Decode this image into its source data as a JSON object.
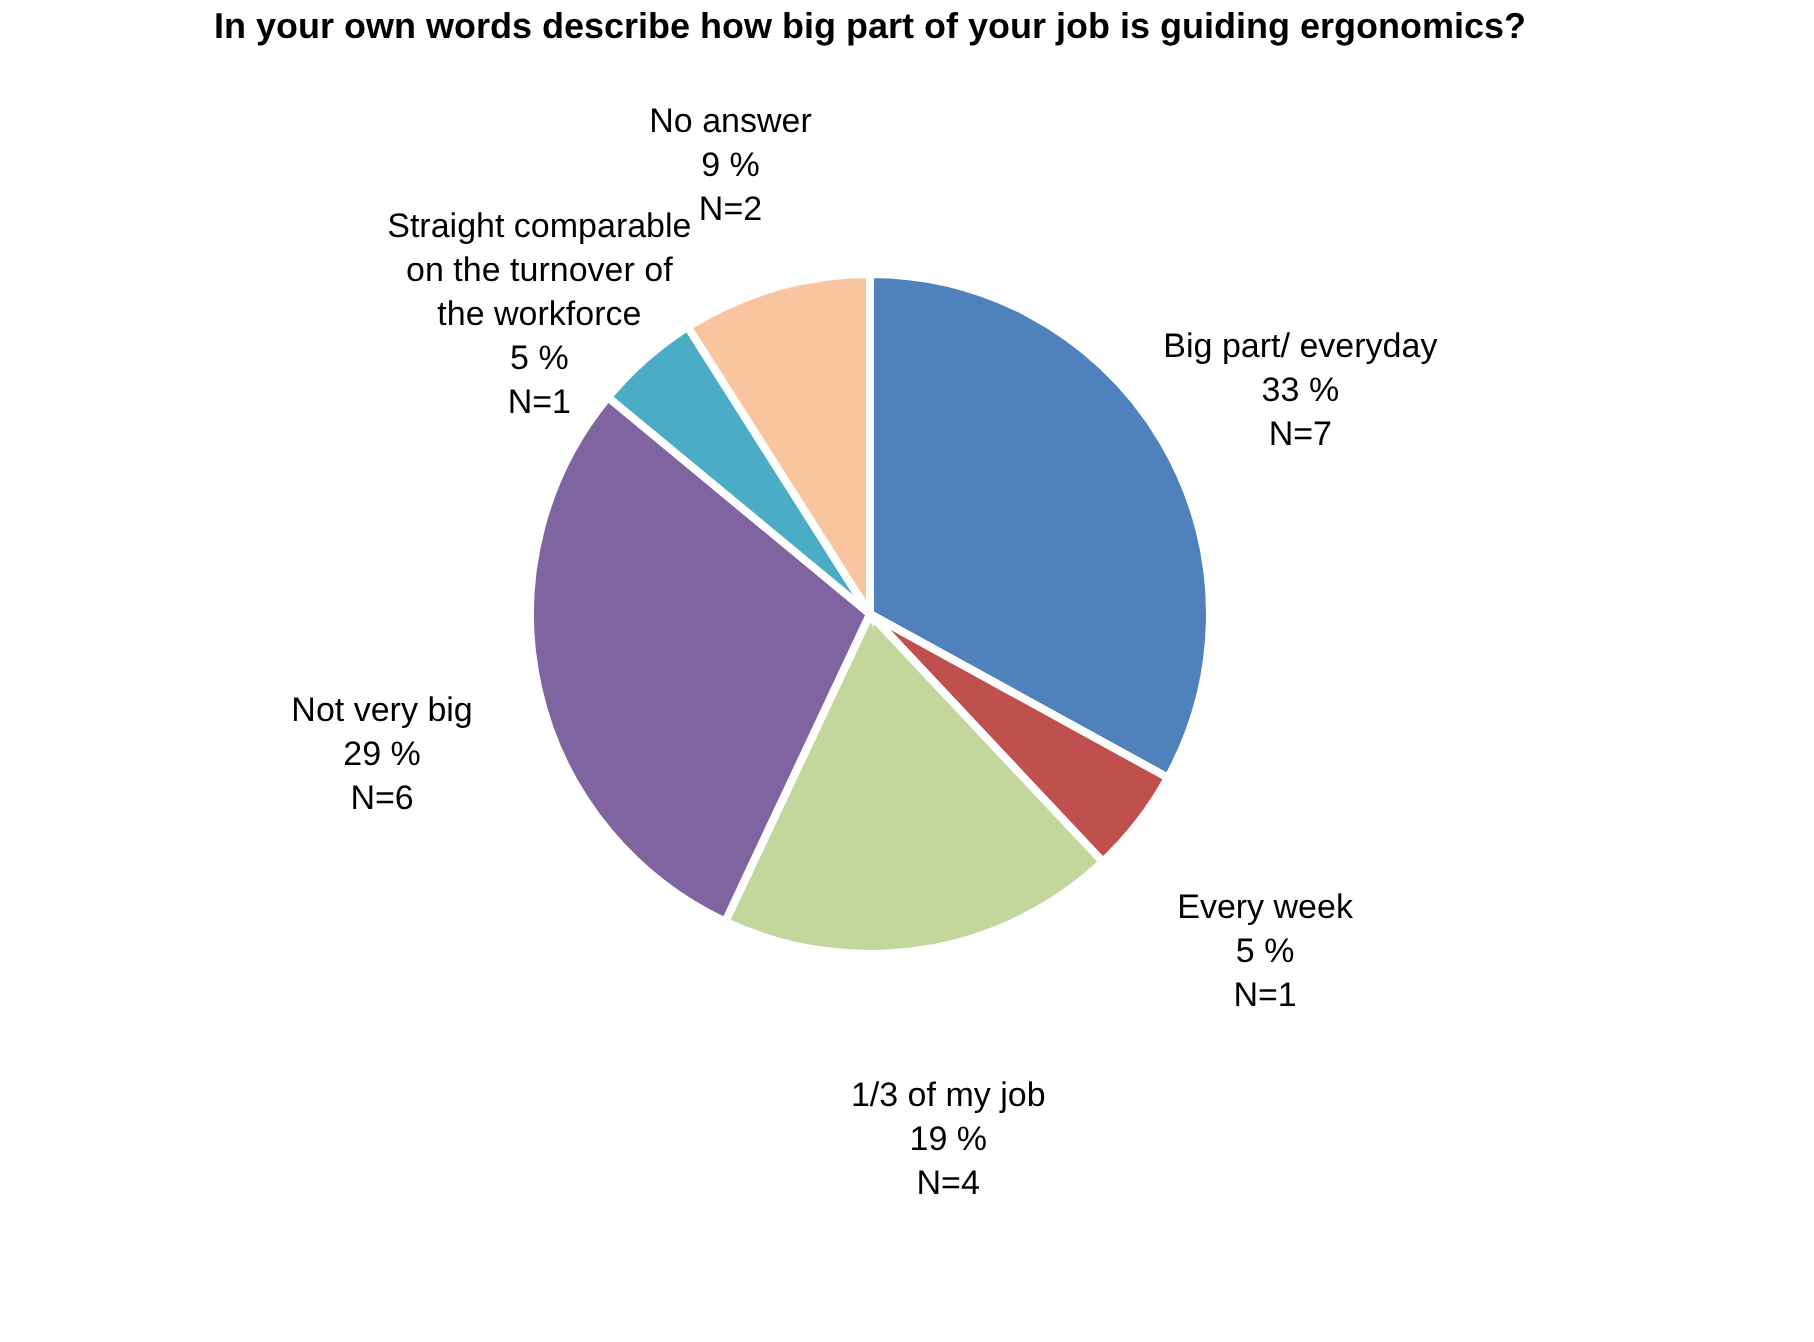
{
  "chart_data": {
    "type": "pie",
    "title": "In your own words describe how big part of your job is guiding ergonomics?",
    "categories": [
      "Big part/ everyday",
      "Every week",
      "1/3 of my job",
      "Not very big",
      "Straight comparable on the turnover of the workforce",
      "No answer"
    ],
    "values": [
      33,
      5,
      19,
      29,
      5,
      9
    ],
    "colors": [
      "#4f81bd",
      "#c0504d",
      "#c3d69b",
      "#8064a2",
      "#4bacc6",
      "#f9c59f"
    ],
    "value_labels": [
      "33 %\nN=7",
      "5 %\nN=1",
      "19 %\nN=4",
      "29 %\nN=6",
      "5 %\nN=1",
      "9 %\nN=2"
    ],
    "legend": false
  }
}
